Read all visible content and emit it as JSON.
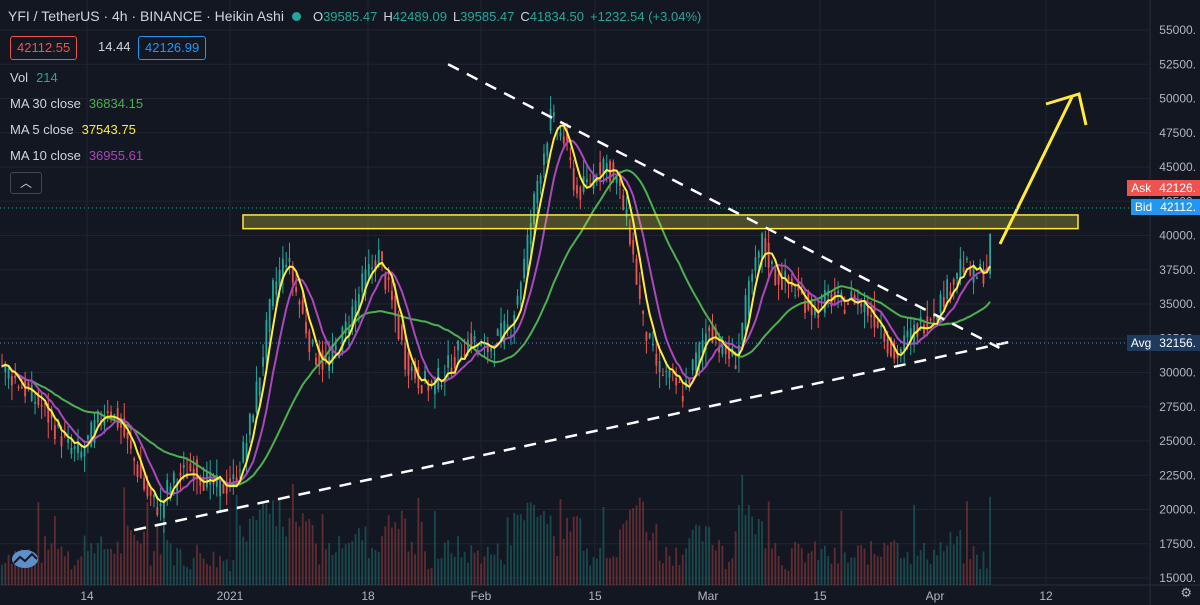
{
  "header": {
    "symbol": "YFI / TetherUS · 4h · BINANCE · Heikin Ashi",
    "ohlc": [
      {
        "k": "O",
        "v": "39585.47"
      },
      {
        "k": "H",
        "v": "42489.09"
      },
      {
        "k": "L",
        "v": "39585.47"
      },
      {
        "k": "C",
        "v": "41834.50"
      },
      {
        "k": "",
        "v": "+1232.54 (+3.04%)"
      }
    ]
  },
  "price_boxes": {
    "sell": "42112.55",
    "spread": "14.44",
    "buy": "42126.99"
  },
  "indicators": {
    "vol": {
      "label": "Vol",
      "value": "214"
    },
    "ma30": {
      "label": "MA 30 close",
      "value": "36834.15"
    },
    "ma5": {
      "label": "MA 5 close",
      "value": "37543.75"
    },
    "ma10": {
      "label": "MA 10 close",
      "value": "36955.61"
    }
  },
  "tags": {
    "ask": {
      "label": "Ask",
      "value": "42126."
    },
    "bid": {
      "label": "Bid",
      "value": "42112."
    },
    "avg": {
      "label": "Avg",
      "value": "32156."
    }
  },
  "colors": {
    "bg": "#131722",
    "up": "#26a69a",
    "down": "#ef5350",
    "ma30": "#4caf50",
    "ma5": "#ffeb3b",
    "ma10": "#ab47bc",
    "annot": "#ffeb3b",
    "ask": "#ef5350",
    "bid": "#2196f3",
    "avg": "#1e3a5f"
  },
  "chart_data": {
    "type": "candlestick",
    "yaxis": {
      "min": 15000,
      "max": 56000,
      "ticks": [
        55000,
        52500,
        50000,
        47500,
        45000,
        42500,
        40000,
        37500,
        35000,
        32500,
        30000,
        27500,
        25000,
        22500,
        20000,
        17500,
        15000
      ]
    },
    "yaxis_labels": [
      "55000.",
      "52500.",
      "50000.",
      "47500.",
      "45000.",
      "42500.",
      "40000.",
      "37500.",
      "35000.",
      "32500.",
      "30000.",
      "27500.",
      "25000.",
      "22500.",
      "20000.",
      "17500.",
      "15000."
    ],
    "xaxis_labels": [
      "14",
      "2021",
      "18",
      "Feb",
      "15",
      "Mar",
      "15",
      "Apr",
      "12"
    ],
    "ma_series": [
      {
        "name": "MA 5 close",
        "color": "#ffeb3b"
      },
      {
        "name": "MA 10 close",
        "color": "#ab47bc"
      },
      {
        "name": "MA 30 close",
        "color": "#4caf50"
      }
    ],
    "price_path": [
      [
        0,
        30500
      ],
      [
        4,
        29500
      ],
      [
        8,
        28500
      ],
      [
        12,
        27500
      ],
      [
        16,
        26000
      ],
      [
        20,
        24500
      ],
      [
        24,
        24000
      ],
      [
        28,
        26000
      ],
      [
        32,
        27500
      ],
      [
        36,
        26000
      ],
      [
        40,
        23500
      ],
      [
        44,
        21000
      ],
      [
        48,
        20000
      ],
      [
        50,
        21500
      ],
      [
        54,
        22500
      ],
      [
        58,
        23000
      ],
      [
        62,
        22000
      ],
      [
        66,
        21500
      ],
      [
        70,
        22000
      ],
      [
        74,
        25000
      ],
      [
        78,
        30000
      ],
      [
        82,
        36000
      ],
      [
        86,
        38500
      ],
      [
        90,
        35000
      ],
      [
        94,
        31500
      ],
      [
        98,
        30500
      ],
      [
        102,
        32000
      ],
      [
        106,
        34500
      ],
      [
        110,
        37000
      ],
      [
        114,
        38500
      ],
      [
        118,
        35000
      ],
      [
        122,
        31000
      ],
      [
        126,
        29500
      ],
      [
        130,
        29000
      ],
      [
        134,
        30000
      ],
      [
        138,
        31500
      ],
      [
        142,
        32500
      ],
      [
        146,
        31500
      ],
      [
        150,
        32500
      ],
      [
        154,
        33500
      ],
      [
        158,
        38000
      ],
      [
        162,
        44000
      ],
      [
        166,
        48500
      ],
      [
        170,
        47000
      ],
      [
        174,
        43000
      ],
      [
        178,
        44000
      ],
      [
        182,
        45500
      ],
      [
        186,
        44000
      ],
      [
        190,
        40000
      ],
      [
        194,
        33500
      ],
      [
        198,
        30500
      ],
      [
        202,
        29500
      ],
      [
        206,
        28500
      ],
      [
        210,
        31000
      ],
      [
        214,
        33500
      ],
      [
        218,
        31500
      ],
      [
        222,
        31000
      ],
      [
        226,
        36000
      ],
      [
        230,
        39500
      ],
      [
        234,
        37000
      ],
      [
        238,
        36500
      ],
      [
        242,
        35500
      ],
      [
        246,
        34500
      ],
      [
        250,
        35500
      ],
      [
        254,
        35000
      ],
      [
        258,
        35500
      ],
      [
        262,
        34500
      ],
      [
        266,
        33500
      ],
      [
        270,
        31000
      ],
      [
        274,
        32500
      ],
      [
        278,
        33500
      ],
      [
        282,
        34500
      ],
      [
        286,
        36000
      ],
      [
        290,
        38000
      ],
      [
        294,
        37000
      ],
      [
        298,
        37500
      ],
      [
        300,
        41834
      ]
    ],
    "volume": "histogram at bottom of chart (values not labeled)",
    "annotations": [
      {
        "type": "resistance-zone",
        "from_price": 40500,
        "to_price": 41500,
        "color": "#ffeb3b"
      },
      {
        "type": "trendline-dashed",
        "label": "descending",
        "p1": [
          135,
          52500
        ],
        "p2": [
          300,
          31800
        ]
      },
      {
        "type": "trendline-dashed",
        "label": "ascending",
        "p1": [
          40,
          18500
        ],
        "p2": [
          302,
          32300
        ]
      },
      {
        "type": "arrow",
        "from_price": 41500,
        "to_price": 50000,
        "color": "#ffeb3b"
      }
    ]
  }
}
